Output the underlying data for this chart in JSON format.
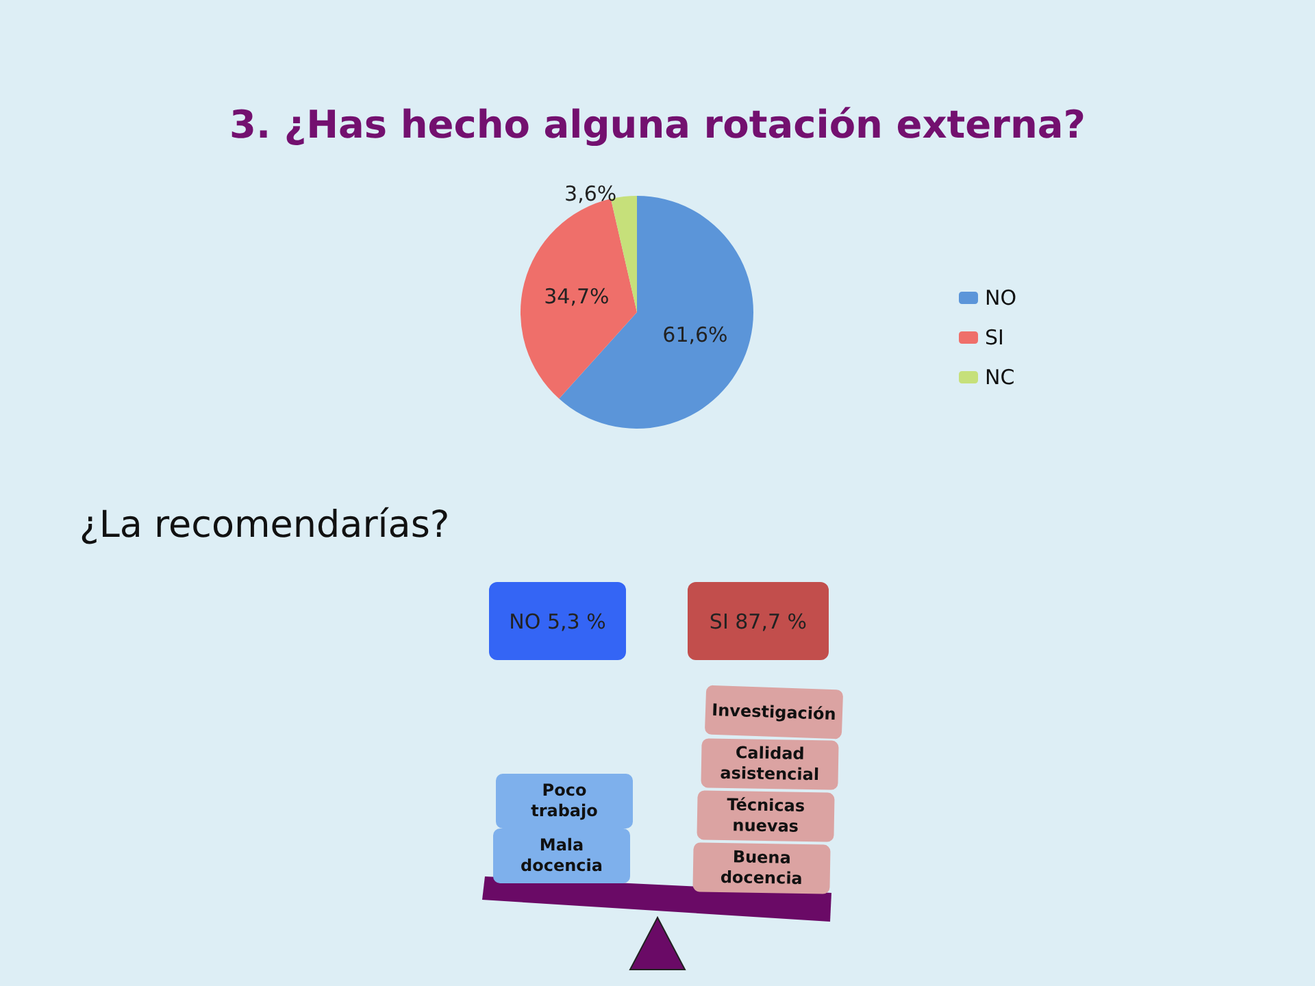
{
  "chart_data": [
    {
      "type": "pie",
      "title": "3. ¿Has hecho alguna rotación externa?",
      "categories": [
        "NO",
        "SI",
        "NC"
      ],
      "values": [
        61.6,
        34.7,
        3.6
      ],
      "colors": [
        "#5b95d9",
        "#ef6f6a",
        "#c6e07a"
      ],
      "value_labels": [
        "61,6%",
        "34,7%",
        "3,6%"
      ],
      "legend": "right"
    },
    {
      "type": "other",
      "title": "¿La recomendarías?",
      "annotations": [
        "NO 5,3 %",
        "SI  87,7 %",
        "Poco trabajo",
        "Mala docencia",
        "Investigación",
        "Calidad asistencial",
        "Técnicas nuevas",
        "Buena docencia"
      ]
    }
  ]
}
